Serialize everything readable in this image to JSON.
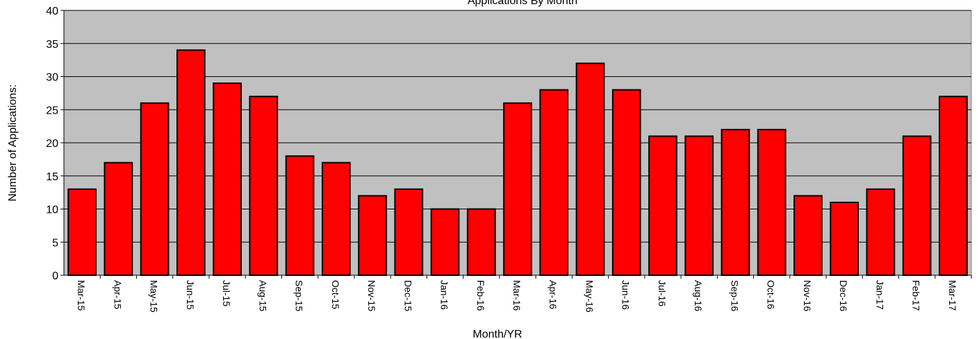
{
  "chart_data": {
    "type": "bar",
    "title": "Applications By Month",
    "xlabel": "Month/YR",
    "ylabel": "Number of Applications:",
    "categories": [
      "Mar-15",
      "Apr-15",
      "May-15",
      "Jun-15",
      "Jul-15",
      "Aug-15",
      "Sep-15",
      "Oct-15",
      "Nov-15",
      "Dec-15",
      "Jan-16",
      "Feb-16",
      "Mar-16",
      "Apr-16",
      "May-16",
      "Jun-16",
      "Jul-16",
      "Aug-16",
      "Sep-16",
      "Oct-16",
      "Nov-16",
      "Dec-16",
      "Jan-17",
      "Feb-17",
      "Mar-17"
    ],
    "values": [
      13,
      17,
      26,
      34,
      29,
      27,
      18,
      17,
      12,
      13,
      10,
      10,
      26,
      28,
      32,
      28,
      21,
      21,
      22,
      22,
      12,
      11,
      13,
      21,
      27
    ],
    "ylim": [
      0,
      40
    ],
    "yticks": [
      0,
      5,
      10,
      15,
      20,
      25,
      30,
      35,
      40
    ],
    "grid": true,
    "legend": "none",
    "colors": {
      "bar_fill": "#ff0000",
      "bar_stroke": "#000000",
      "plot_background": "#c0c0c0",
      "gridline": "#000000"
    }
  }
}
